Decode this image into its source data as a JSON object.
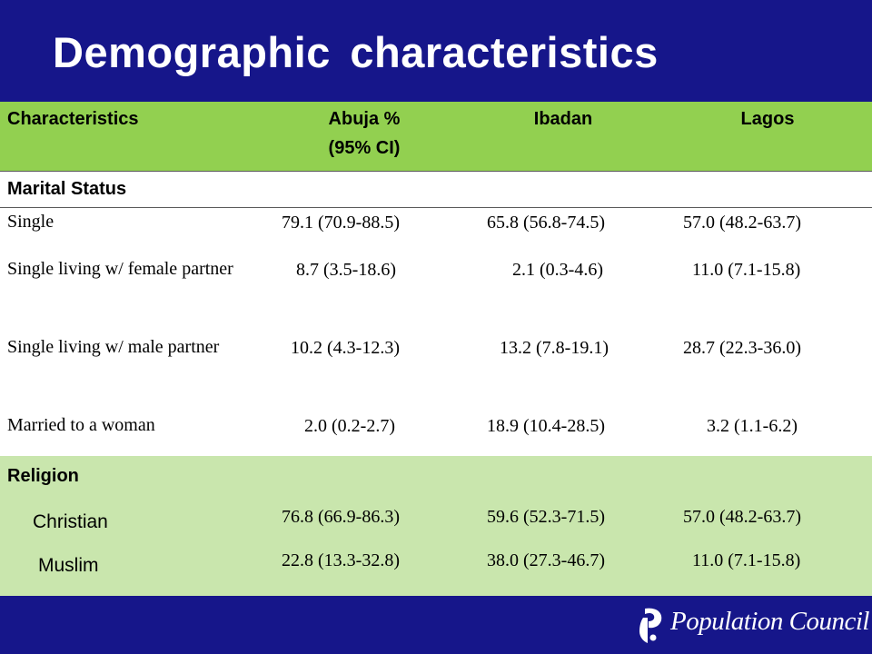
{
  "title": "Demographic characteristics",
  "table": {
    "headers": {
      "characteristics": "Characteristics",
      "abuja_line1": "Abuja %",
      "abuja_line2": "(95% CI)",
      "ibadan": "Ibadan",
      "lagos": "Lagos"
    },
    "marital_status": {
      "label": "Marital Status",
      "rows": [
        {
          "label": "Single",
          "abuja": "79.1 (70.9-88.5)",
          "ibadan": "65.8 (56.8-74.5)",
          "lagos": "57.0 (48.2-63.7)"
        },
        {
          "label": "Single living w/ female partner",
          "abuja": "8.7 (3.5-18.6)",
          "ibadan": "2.1 (0.3-4.6)",
          "lagos": "11.0 (7.1-15.8)"
        },
        {
          "label": "Single living w/ male partner",
          "abuja": "10.2 (4.3-12.3)",
          "ibadan": "13.2 (7.8-19.1)",
          "lagos": "28.7 (22.3-36.0)"
        },
        {
          "label": "Married to a woman",
          "abuja": "2.0 (0.2-2.7)",
          "ibadan": "18.9 (10.4-28.5)",
          "lagos": "3.2 (1.1-6.2)"
        }
      ]
    },
    "religion": {
      "label": "Religion",
      "rows": [
        {
          "label": "Christian",
          "abuja": "76.8 (66.9-86.3)",
          "ibadan": "59.6 (52.3-71.5)",
          "lagos": "57.0 (48.2-63.7)"
        },
        {
          "label": "Muslim",
          "abuja": "22.8 (13.3-32.8)",
          "ibadan": "38.0 (27.3-46.7)",
          "lagos": "11.0 (7.1-15.8)"
        }
      ]
    }
  },
  "footer": {
    "logo_text": "Population Council"
  },
  "colors": {
    "header_blue": "#16168a",
    "table_header_green": "#92d050",
    "religion_band_green": "#c9e6ad"
  }
}
